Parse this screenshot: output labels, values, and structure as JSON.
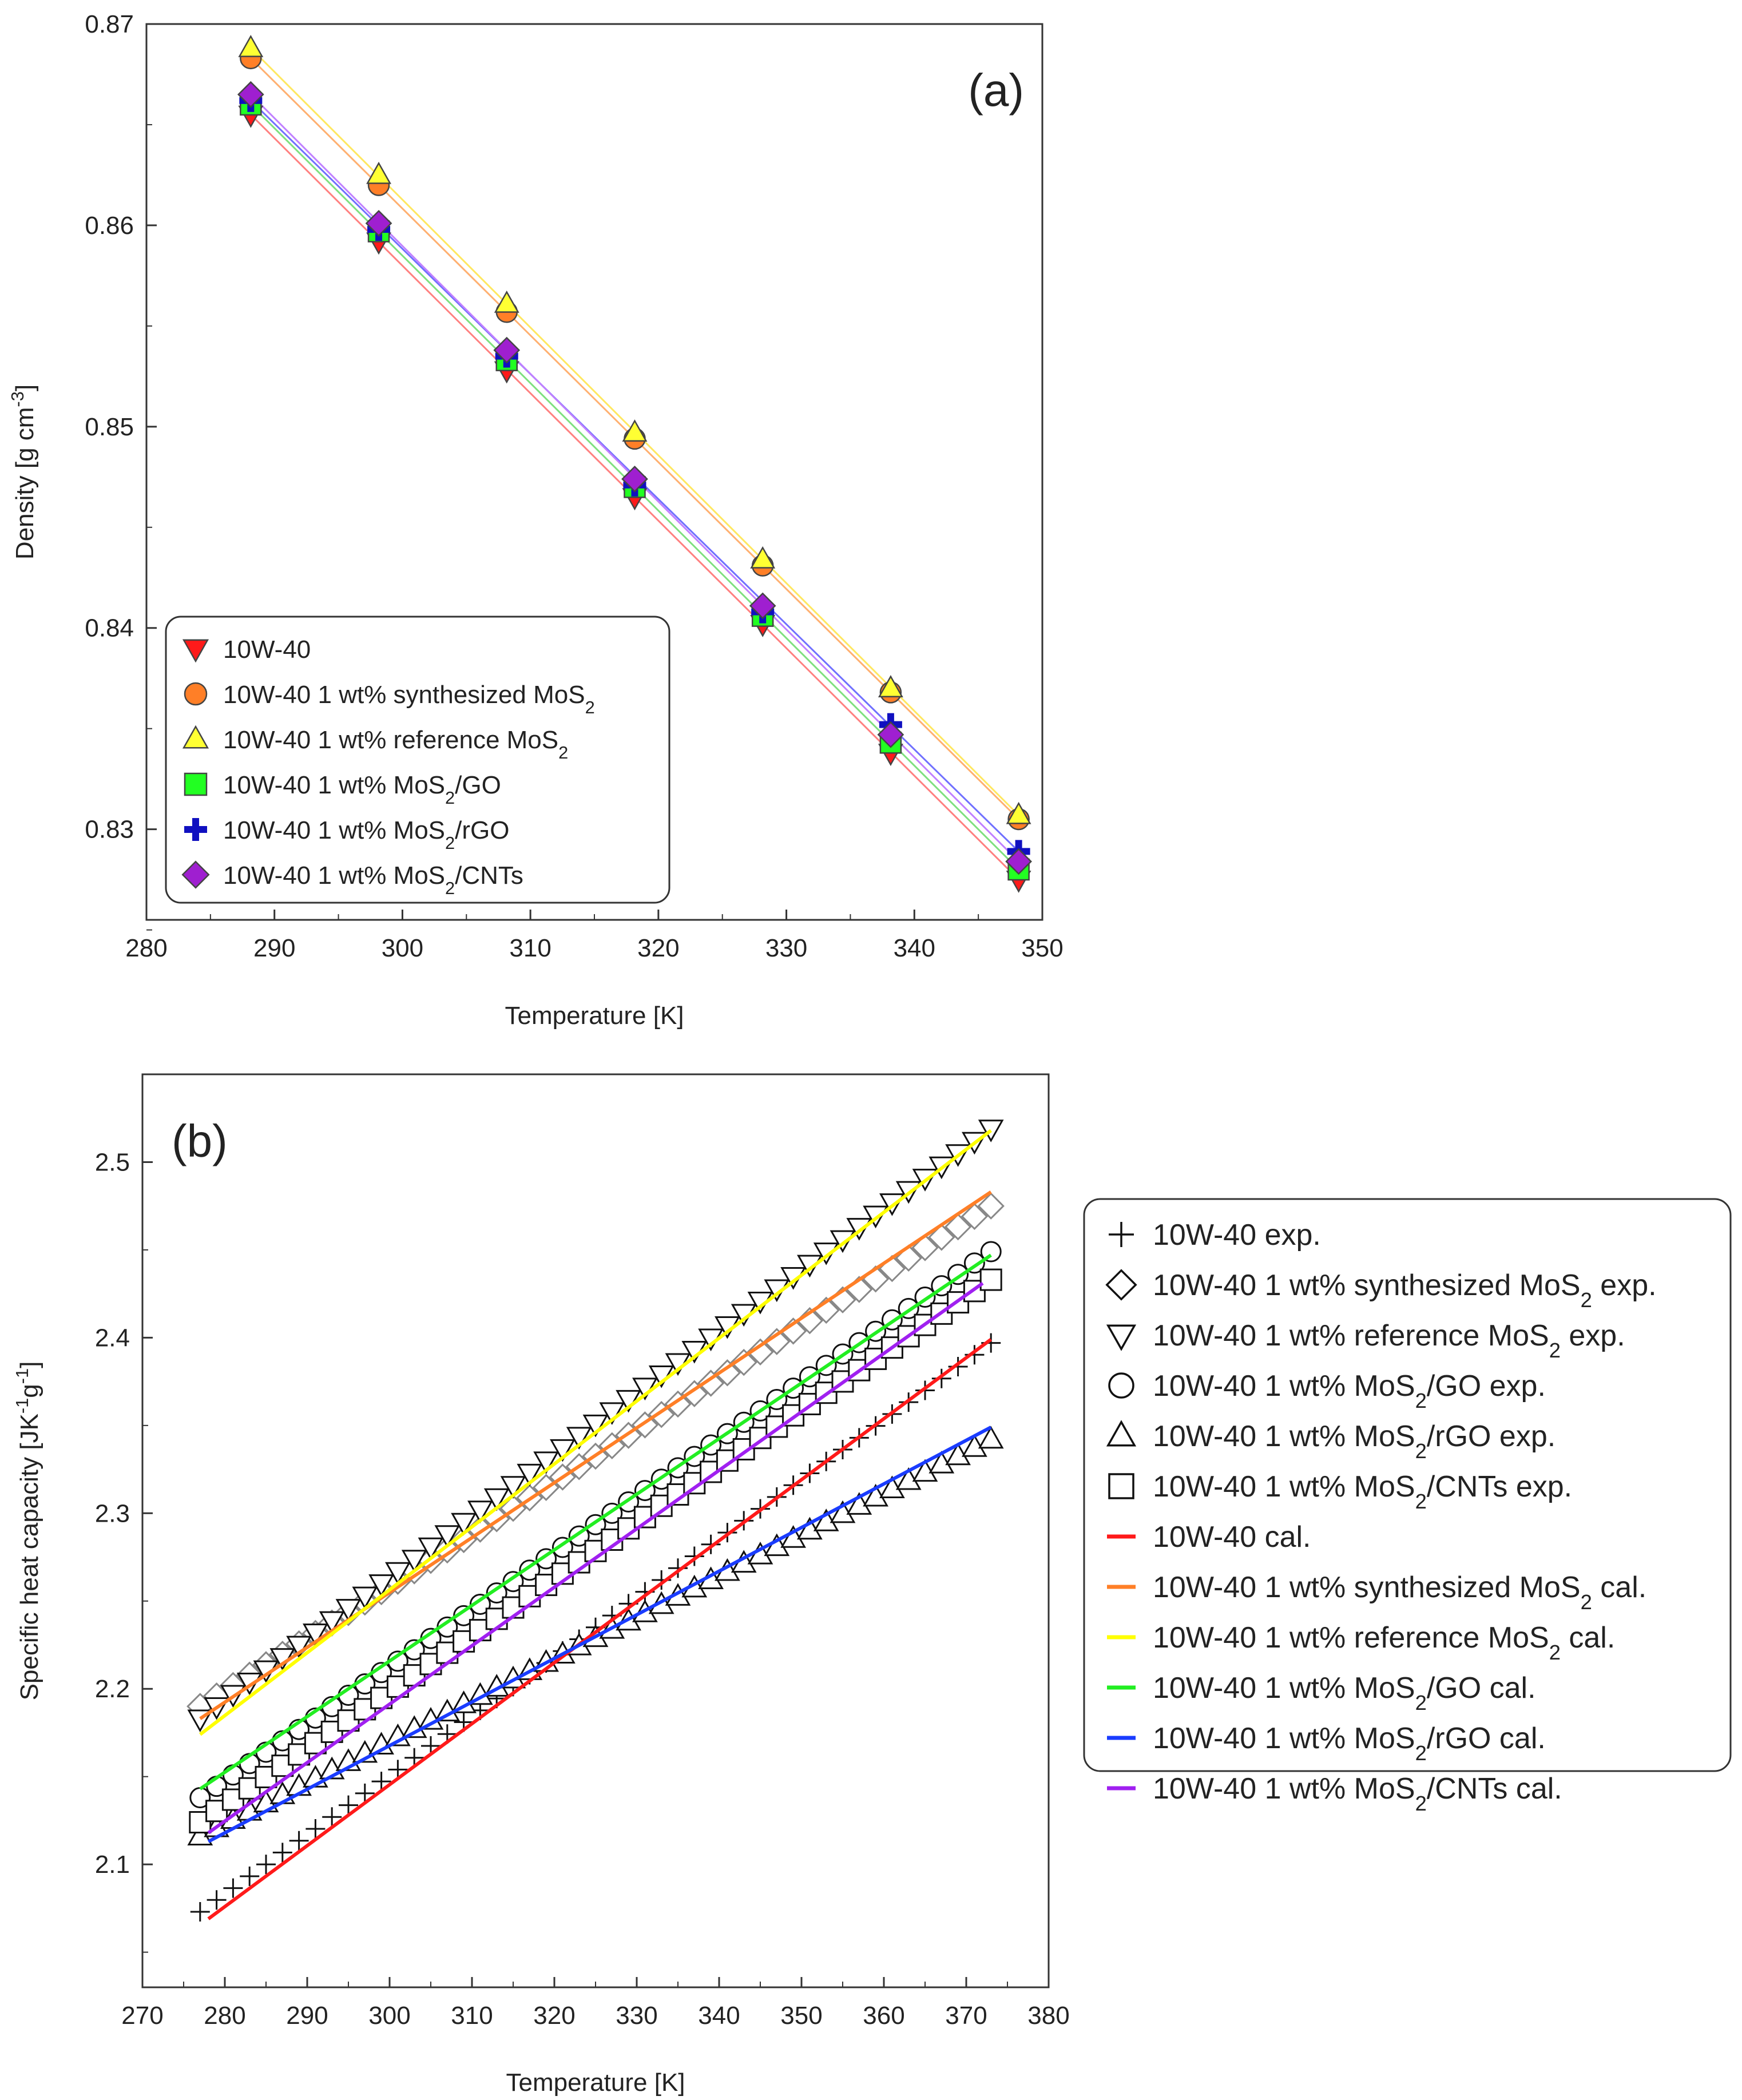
{
  "chart_data": [
    {
      "id": "a",
      "type": "line",
      "panel_label": "(a)",
      "xlabel": "Temperature [K]",
      "ylabel": "Density [g cm⁻³]",
      "xlim": [
        280,
        350
      ],
      "ylim": [
        0.8255,
        0.87
      ],
      "xticks": [
        280,
        290,
        300,
        310,
        320,
        330,
        340,
        350
      ],
      "yticks": [
        0.83,
        0.84,
        0.85,
        0.86,
        0.87
      ],
      "ytick_labels": [
        "0.83",
        "0.84",
        "0.85",
        "0.86",
        "0.87"
      ],
      "legend_position": "bottom-left",
      "x": [
        288.15,
        298.15,
        308.15,
        318.15,
        328.15,
        338.15,
        348.15
      ],
      "series": [
        {
          "name": "10W-40",
          "marker": "triangle-down",
          "fill": "#ff1a1a",
          "line": "#ff8080",
          "values": [
            0.8655,
            0.8592,
            0.8528,
            0.8465,
            0.8402,
            0.8338,
            0.8275
          ]
        },
        {
          "name": "10W-40 1 wt% synthesized MoS₂",
          "marker": "circle",
          "fill": "#ff7f27",
          "line": "#ffb070",
          "values": [
            0.8683,
            0.862,
            0.8557,
            0.8494,
            0.8431,
            0.8368,
            0.8305
          ]
        },
        {
          "name": "10W-40 1 wt% reference MoS₂",
          "marker": "triangle-up",
          "fill": "#ffff33",
          "line": "#ffe860",
          "values": [
            0.8688,
            0.8625,
            0.8561,
            0.8497,
            0.8434,
            0.837,
            0.8307
          ]
        },
        {
          "name": "10W-40 1 wt% MoS₂/GO",
          "marker": "square",
          "fill": "#22ff22",
          "line": "#7fe07f",
          "values": [
            0.866,
            0.8597,
            0.8533,
            0.847,
            0.8406,
            0.8343,
            0.828
          ]
        },
        {
          "name": "10W-40 1 wt% MoS₂/rGO",
          "marker": "plus",
          "fill": "#1010c0",
          "line": "#7070ff",
          "values": [
            0.8662,
            0.8598,
            0.8535,
            0.8471,
            0.8408,
            0.8352,
            0.8289
          ]
        },
        {
          "name": "10W-40 1 wt% MoS₂/CNTs",
          "marker": "diamond",
          "fill": "#9f1fd0",
          "line": "#c080ff",
          "values": [
            0.8665,
            0.8601,
            0.8538,
            0.8474,
            0.8411,
            0.8347,
            0.8284
          ]
        }
      ]
    },
    {
      "id": "b",
      "type": "line",
      "panel_label": "(b)",
      "xlabel": "Temperature [K]",
      "ylabel": "Specific heat capacity [JK⁻¹g⁻¹]",
      "xlim": [
        270,
        380
      ],
      "ylim": [
        2.03,
        2.55
      ],
      "xticks": [
        270,
        280,
        290,
        300,
        310,
        320,
        330,
        340,
        350,
        360,
        370,
        380
      ],
      "yticks": [
        2.1,
        2.2,
        2.3,
        2.4,
        2.5
      ],
      "ytick_labels": [
        "2.1",
        "2.2",
        "2.3",
        "2.4",
        "2.5"
      ],
      "legend_position": "outside-right",
      "x_start": 277,
      "x_end": 373,
      "x_step": 2,
      "series": [
        {
          "name": "10W-40 exp.",
          "marker": "plus",
          "at_x": [
            277,
            373
          ],
          "values": [
            2.073,
            2.397
          ]
        },
        {
          "name": "10W-40 1 wt% synthesized MoS₂ exp.",
          "marker": "diamond",
          "at_x": [
            277,
            373
          ],
          "values": [
            2.19,
            2.475
          ]
        },
        {
          "name": "10W-40 1 wt% reference MoS₂ exp.",
          "marker": "triangle-down",
          "at_x": [
            277,
            373
          ],
          "values": [
            2.183,
            2.519
          ]
        },
        {
          "name": "10W-40 1 wt% MoS₂/GO exp.",
          "marker": "circle",
          "at_x": [
            277,
            373
          ],
          "values": [
            2.138,
            2.449
          ]
        },
        {
          "name": "10W-40 1 wt% MoS₂/rGO exp.",
          "marker": "triangle-up",
          "at_x": [
            277,
            373
          ],
          "values": [
            2.116,
            2.342
          ]
        },
        {
          "name": "10W-40 1 wt% MoS₂/CNTs exp.",
          "marker": "square",
          "at_x": [
            277,
            373
          ],
          "values": [
            2.124,
            2.433
          ]
        },
        {
          "name": "10W-40 cal.",
          "line": "#ff1a1a",
          "at_x": [
            278,
            373
          ],
          "values": [
            2.069,
            2.399
          ]
        },
        {
          "name": "10W-40 1 wt% synthesized MoS₂ cal.",
          "line": "#ff7f27",
          "at_x": [
            277,
            373
          ],
          "values": [
            2.183,
            2.483
          ]
        },
        {
          "name": "10W-40 1 wt% reference MoS₂ cal.",
          "line": "#ffff00",
          "at_x": [
            277,
            373
          ],
          "values": [
            2.174,
            2.518
          ]
        },
        {
          "name": "10W-40 1 wt% MoS₂/GO cal.",
          "line": "#22ee22",
          "at_x": [
            277,
            373
          ],
          "values": [
            2.143,
            2.447
          ]
        },
        {
          "name": "10W-40 1 wt% MoS₂/rGO cal.",
          "line": "#1a3cff",
          "at_x": [
            278,
            373
          ],
          "values": [
            2.113,
            2.349
          ]
        },
        {
          "name": "10W-40 1 wt% MoS₂/CNTs cal.",
          "line": "#a020f0",
          "at_x": [
            278,
            372
          ],
          "values": [
            2.118,
            2.431
          ]
        }
      ]
    }
  ]
}
